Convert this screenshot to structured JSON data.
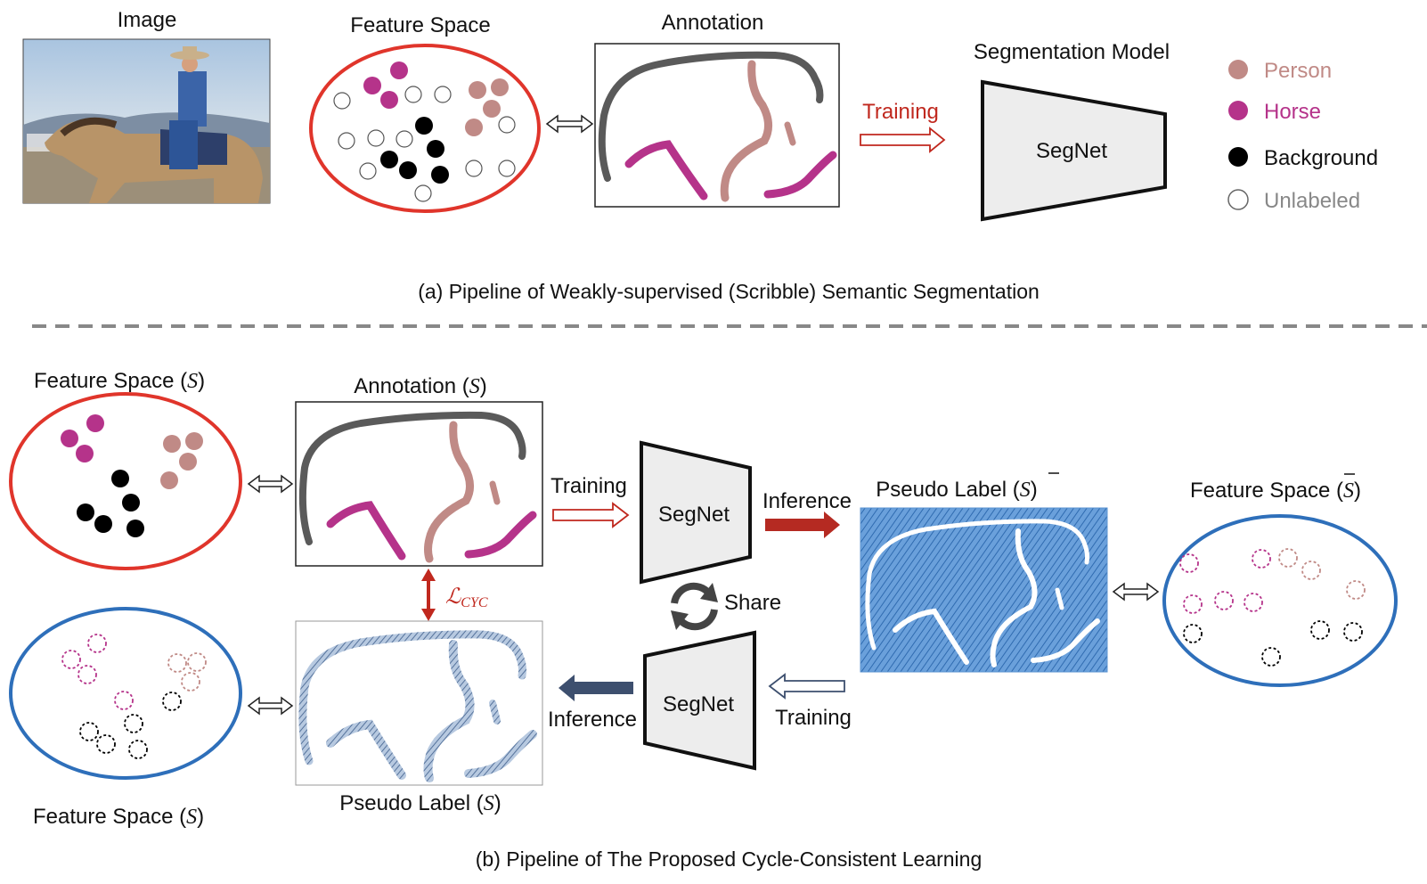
{
  "part_a": {
    "image_title": "Image",
    "feature_space_title": "Feature Space",
    "annotation_title": "Annotation",
    "model_title": "Segmentation Model",
    "training_label": "Training",
    "segnet_label": "SegNet",
    "caption": "(a) Pipeline of Weakly-supervised (Scribble) Semantic Segmentation"
  },
  "legend": [
    {
      "label": "Person",
      "color": "#c08a86",
      "filled": true
    },
    {
      "label": "Horse",
      "color": "#b5338a",
      "filled": true
    },
    {
      "label": "Background",
      "color": "#000000",
      "filled": true
    },
    {
      "label": "Unlabeled",
      "color": "#888888",
      "filled": false
    }
  ],
  "part_b": {
    "feature_space_s": "Feature Space (",
    "annotation_s": "Annotation (",
    "pseudo_label_sbar": "Pseudo Label (",
    "feature_space_sbar": "Feature Space (",
    "feature_space_s_bottom": "Feature Space (",
    "pseudo_label_s": "Pseudo Label (",
    "symbol_s": "S",
    "close_paren": ")",
    "training_top": "Training",
    "inference_top": "Inference",
    "segnet_top": "SegNet",
    "share": "Share",
    "segnet_bottom": "SegNet",
    "inference_bottom": "Inference",
    "training_bottom": "Training",
    "loss_symbol": "ℒ",
    "loss_subscript": "CYC",
    "caption": "(b) Pipeline of The Proposed Cycle-Consistent Learning"
  },
  "colors": {
    "person": "#c08a86",
    "horse": "#b5338a",
    "background": "#000000",
    "red_accent": "#c0281e",
    "blue_accent": "#2e6fba",
    "navy_arrow": "#3d4f6e",
    "pseudo_fill": "#5b93d1"
  }
}
